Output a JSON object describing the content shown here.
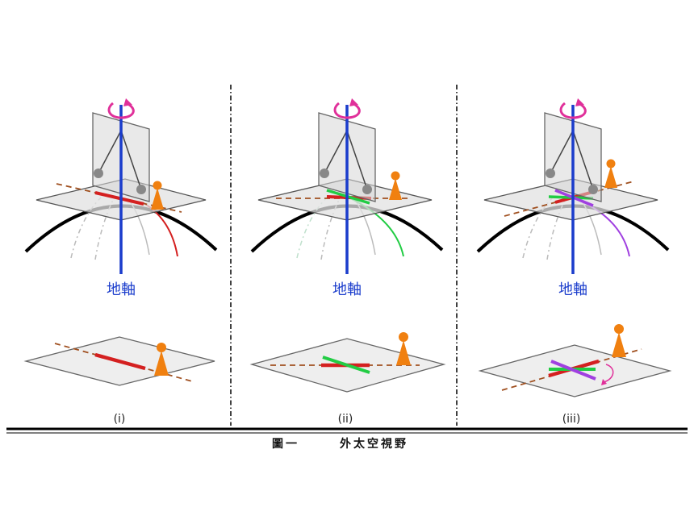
{
  "figure": {
    "axis_label": "地軸",
    "panels": [
      {
        "label": "(i)"
      },
      {
        "label": "(ii)"
      },
      {
        "label": "(iii)"
      }
    ],
    "caption": {
      "number": "圖一",
      "title": "外太空視野"
    }
  },
  "colors": {
    "axis": "#1a3ccc",
    "rotation_arrow": "#e0309a",
    "path_i": "#d42020",
    "path_ii": "#22cc44",
    "path_iii": "#a040e0",
    "observer": "#f08010",
    "dashed_line": "#a05020"
  }
}
